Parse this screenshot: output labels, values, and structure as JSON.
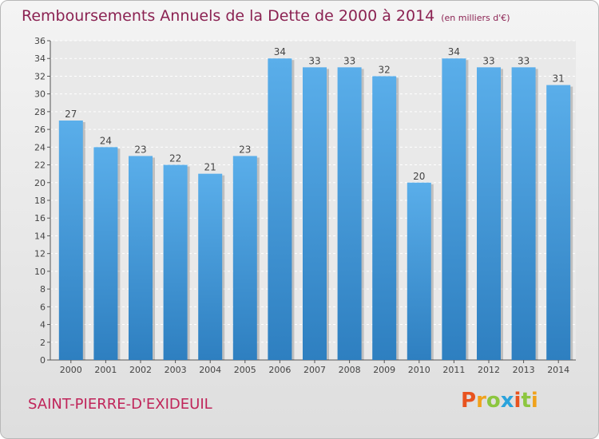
{
  "header": {
    "title": "Remboursements Annuels de la Dette de 2000 à 2014",
    "unit": "(en milliers d'€)"
  },
  "footer": {
    "city": "SAINT-PIERRE-D'EXIDEUIL",
    "brand": "Proxiti"
  },
  "colors": {
    "bar_light": "#5aaeea",
    "bar_dark": "#2e7fc0",
    "title": "#8b2252",
    "city": "#c0255a"
  },
  "chart_data": {
    "type": "bar",
    "title": "Remboursements Annuels de la Dette de 2000 à 2014",
    "xlabel": "",
    "ylabel": "",
    "categories": [
      "2000",
      "2001",
      "2002",
      "2003",
      "2004",
      "2005",
      "2006",
      "2007",
      "2008",
      "2009",
      "2010",
      "2011",
      "2012",
      "2013",
      "2014"
    ],
    "values": [
      27,
      24,
      23,
      22,
      21,
      23,
      34,
      33,
      33,
      32,
      20,
      34,
      33,
      33,
      31
    ],
    "ylim": [
      0,
      36
    ],
    "yticks": [
      0,
      2,
      4,
      6,
      8,
      10,
      12,
      14,
      16,
      18,
      20,
      22,
      24,
      26,
      28,
      30,
      32,
      34,
      36
    ],
    "grid": true
  }
}
